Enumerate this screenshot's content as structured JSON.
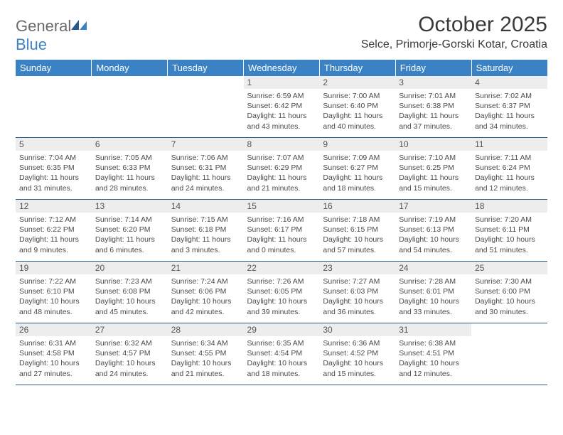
{
  "logo": {
    "word1": "General",
    "word2": "Blue"
  },
  "title": "October 2025",
  "location": "Selce, Primorje-Gorski Kotar, Croatia",
  "colors": {
    "header_bg": "#3b82c4",
    "header_text": "#ffffff",
    "daynum_bg": "#ededed",
    "row_divider": "#2a5a8a",
    "body_text": "#4a4a4a",
    "logo_gray": "#6b6b6b",
    "logo_blue": "#3b82c4",
    "page_bg": "#ffffff"
  },
  "typography": {
    "title_fontsize": 30,
    "location_fontsize": 16,
    "dayhead_fontsize": 13,
    "daynum_fontsize": 12,
    "body_fontsize": 10.5
  },
  "day_names": [
    "Sunday",
    "Monday",
    "Tuesday",
    "Wednesday",
    "Thursday",
    "Friday",
    "Saturday"
  ],
  "weeks": [
    [
      {
        "n": "",
        "sr": "",
        "ss": "",
        "dl": ""
      },
      {
        "n": "",
        "sr": "",
        "ss": "",
        "dl": ""
      },
      {
        "n": "",
        "sr": "",
        "ss": "",
        "dl": ""
      },
      {
        "n": "1",
        "sr": "Sunrise: 6:59 AM",
        "ss": "Sunset: 6:42 PM",
        "dl": "Daylight: 11 hours and 43 minutes."
      },
      {
        "n": "2",
        "sr": "Sunrise: 7:00 AM",
        "ss": "Sunset: 6:40 PM",
        "dl": "Daylight: 11 hours and 40 minutes."
      },
      {
        "n": "3",
        "sr": "Sunrise: 7:01 AM",
        "ss": "Sunset: 6:38 PM",
        "dl": "Daylight: 11 hours and 37 minutes."
      },
      {
        "n": "4",
        "sr": "Sunrise: 7:02 AM",
        "ss": "Sunset: 6:37 PM",
        "dl": "Daylight: 11 hours and 34 minutes."
      }
    ],
    [
      {
        "n": "5",
        "sr": "Sunrise: 7:04 AM",
        "ss": "Sunset: 6:35 PM",
        "dl": "Daylight: 11 hours and 31 minutes."
      },
      {
        "n": "6",
        "sr": "Sunrise: 7:05 AM",
        "ss": "Sunset: 6:33 PM",
        "dl": "Daylight: 11 hours and 28 minutes."
      },
      {
        "n": "7",
        "sr": "Sunrise: 7:06 AM",
        "ss": "Sunset: 6:31 PM",
        "dl": "Daylight: 11 hours and 24 minutes."
      },
      {
        "n": "8",
        "sr": "Sunrise: 7:07 AM",
        "ss": "Sunset: 6:29 PM",
        "dl": "Daylight: 11 hours and 21 minutes."
      },
      {
        "n": "9",
        "sr": "Sunrise: 7:09 AM",
        "ss": "Sunset: 6:27 PM",
        "dl": "Daylight: 11 hours and 18 minutes."
      },
      {
        "n": "10",
        "sr": "Sunrise: 7:10 AM",
        "ss": "Sunset: 6:25 PM",
        "dl": "Daylight: 11 hours and 15 minutes."
      },
      {
        "n": "11",
        "sr": "Sunrise: 7:11 AM",
        "ss": "Sunset: 6:24 PM",
        "dl": "Daylight: 11 hours and 12 minutes."
      }
    ],
    [
      {
        "n": "12",
        "sr": "Sunrise: 7:12 AM",
        "ss": "Sunset: 6:22 PM",
        "dl": "Daylight: 11 hours and 9 minutes."
      },
      {
        "n": "13",
        "sr": "Sunrise: 7:14 AM",
        "ss": "Sunset: 6:20 PM",
        "dl": "Daylight: 11 hours and 6 minutes."
      },
      {
        "n": "14",
        "sr": "Sunrise: 7:15 AM",
        "ss": "Sunset: 6:18 PM",
        "dl": "Daylight: 11 hours and 3 minutes."
      },
      {
        "n": "15",
        "sr": "Sunrise: 7:16 AM",
        "ss": "Sunset: 6:17 PM",
        "dl": "Daylight: 11 hours and 0 minutes."
      },
      {
        "n": "16",
        "sr": "Sunrise: 7:18 AM",
        "ss": "Sunset: 6:15 PM",
        "dl": "Daylight: 10 hours and 57 minutes."
      },
      {
        "n": "17",
        "sr": "Sunrise: 7:19 AM",
        "ss": "Sunset: 6:13 PM",
        "dl": "Daylight: 10 hours and 54 minutes."
      },
      {
        "n": "18",
        "sr": "Sunrise: 7:20 AM",
        "ss": "Sunset: 6:11 PM",
        "dl": "Daylight: 10 hours and 51 minutes."
      }
    ],
    [
      {
        "n": "19",
        "sr": "Sunrise: 7:22 AM",
        "ss": "Sunset: 6:10 PM",
        "dl": "Daylight: 10 hours and 48 minutes."
      },
      {
        "n": "20",
        "sr": "Sunrise: 7:23 AM",
        "ss": "Sunset: 6:08 PM",
        "dl": "Daylight: 10 hours and 45 minutes."
      },
      {
        "n": "21",
        "sr": "Sunrise: 7:24 AM",
        "ss": "Sunset: 6:06 PM",
        "dl": "Daylight: 10 hours and 42 minutes."
      },
      {
        "n": "22",
        "sr": "Sunrise: 7:26 AM",
        "ss": "Sunset: 6:05 PM",
        "dl": "Daylight: 10 hours and 39 minutes."
      },
      {
        "n": "23",
        "sr": "Sunrise: 7:27 AM",
        "ss": "Sunset: 6:03 PM",
        "dl": "Daylight: 10 hours and 36 minutes."
      },
      {
        "n": "24",
        "sr": "Sunrise: 7:28 AM",
        "ss": "Sunset: 6:01 PM",
        "dl": "Daylight: 10 hours and 33 minutes."
      },
      {
        "n": "25",
        "sr": "Sunrise: 7:30 AM",
        "ss": "Sunset: 6:00 PM",
        "dl": "Daylight: 10 hours and 30 minutes."
      }
    ],
    [
      {
        "n": "26",
        "sr": "Sunrise: 6:31 AM",
        "ss": "Sunset: 4:58 PM",
        "dl": "Daylight: 10 hours and 27 minutes."
      },
      {
        "n": "27",
        "sr": "Sunrise: 6:32 AM",
        "ss": "Sunset: 4:57 PM",
        "dl": "Daylight: 10 hours and 24 minutes."
      },
      {
        "n": "28",
        "sr": "Sunrise: 6:34 AM",
        "ss": "Sunset: 4:55 PM",
        "dl": "Daylight: 10 hours and 21 minutes."
      },
      {
        "n": "29",
        "sr": "Sunrise: 6:35 AM",
        "ss": "Sunset: 4:54 PM",
        "dl": "Daylight: 10 hours and 18 minutes."
      },
      {
        "n": "30",
        "sr": "Sunrise: 6:36 AM",
        "ss": "Sunset: 4:52 PM",
        "dl": "Daylight: 10 hours and 15 minutes."
      },
      {
        "n": "31",
        "sr": "Sunrise: 6:38 AM",
        "ss": "Sunset: 4:51 PM",
        "dl": "Daylight: 10 hours and 12 minutes."
      },
      {
        "n": "",
        "sr": "",
        "ss": "",
        "dl": ""
      }
    ]
  ]
}
